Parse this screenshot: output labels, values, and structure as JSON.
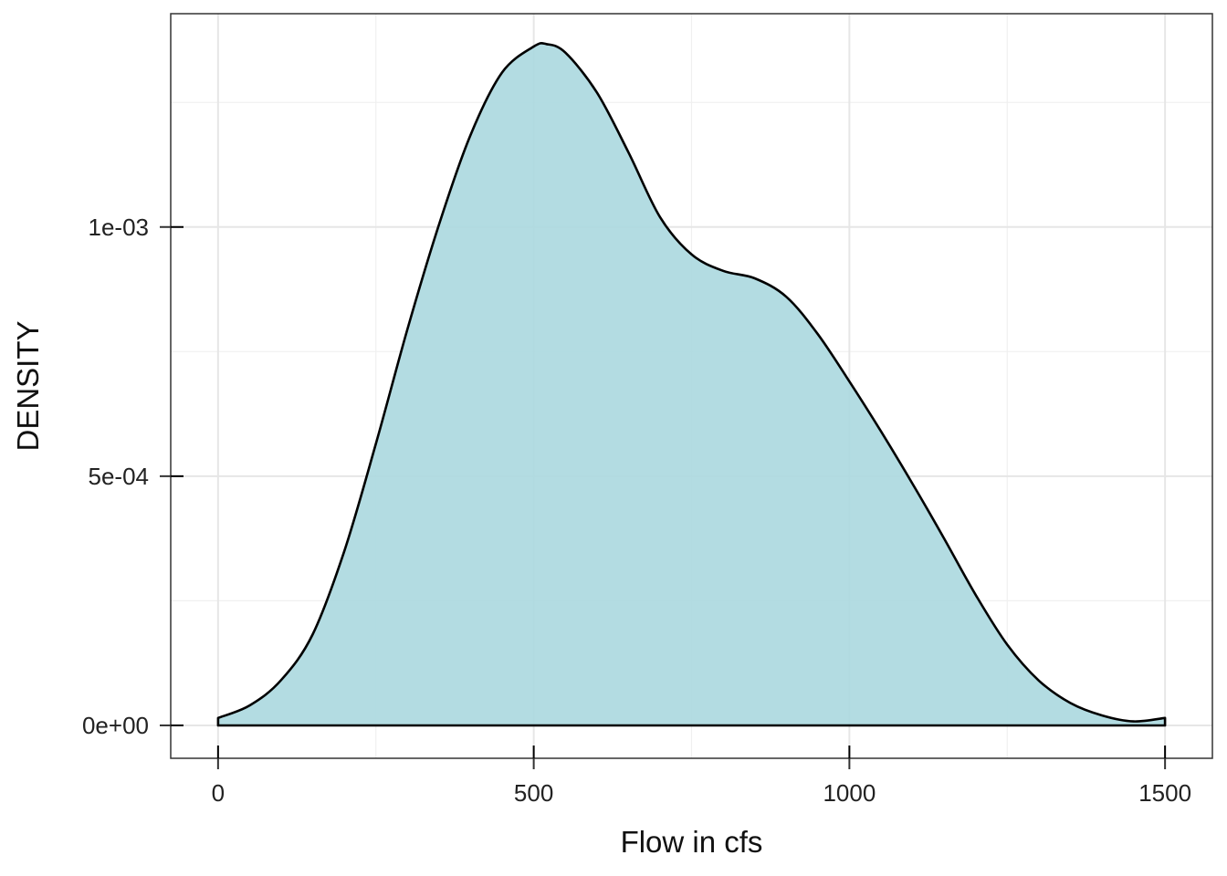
{
  "chart_data": {
    "type": "area",
    "title": "",
    "xlabel": "Flow in cfs",
    "ylabel": "DENSITY",
    "xlim": [
      -75,
      1575
    ],
    "ylim": [
      -6.6e-05,
      0.001428
    ],
    "x_ticks": [
      0,
      500,
      1000,
      1500
    ],
    "x_tick_labels": [
      "0",
      "500",
      "1000",
      "1500"
    ],
    "y_ticks": [
      0,
      0.0005,
      0.001
    ],
    "y_tick_labels": [
      "0e+00",
      "5e-04",
      "1e-03"
    ],
    "grid": true,
    "legend": "none",
    "series": [
      {
        "x": [
          0,
          50,
          100,
          150,
          200,
          250,
          300,
          350,
          400,
          450,
          500,
          520,
          550,
          600,
          650,
          700,
          750,
          800,
          850,
          900,
          950,
          1000,
          1050,
          1100,
          1150,
          1200,
          1250,
          1300,
          1350,
          1400,
          1450,
          1500
        ],
        "y": [
          1.5e-05,
          4e-05,
          9.1e-05,
          0.000183,
          0.00035,
          0.000565,
          0.000795,
          0.001005,
          0.001185,
          0.00131,
          0.001362,
          0.001367,
          0.00135,
          0.00127,
          0.00115,
          0.00102,
          0.000945,
          0.000912,
          0.000897,
          0.00086,
          0.000785,
          0.00069,
          0.00059,
          0.000485,
          0.000375,
          0.000262,
          0.000162,
          9e-05,
          4.5e-05,
          2e-05,
          8e-06,
          1.5e-05
        ]
      }
    ]
  },
  "colors": {
    "fill": "#add9e0",
    "stroke": "#000000",
    "grid_major": "#e6e6e6",
    "grid_minor": "#f0f0f0",
    "panel_border": "#333333"
  }
}
